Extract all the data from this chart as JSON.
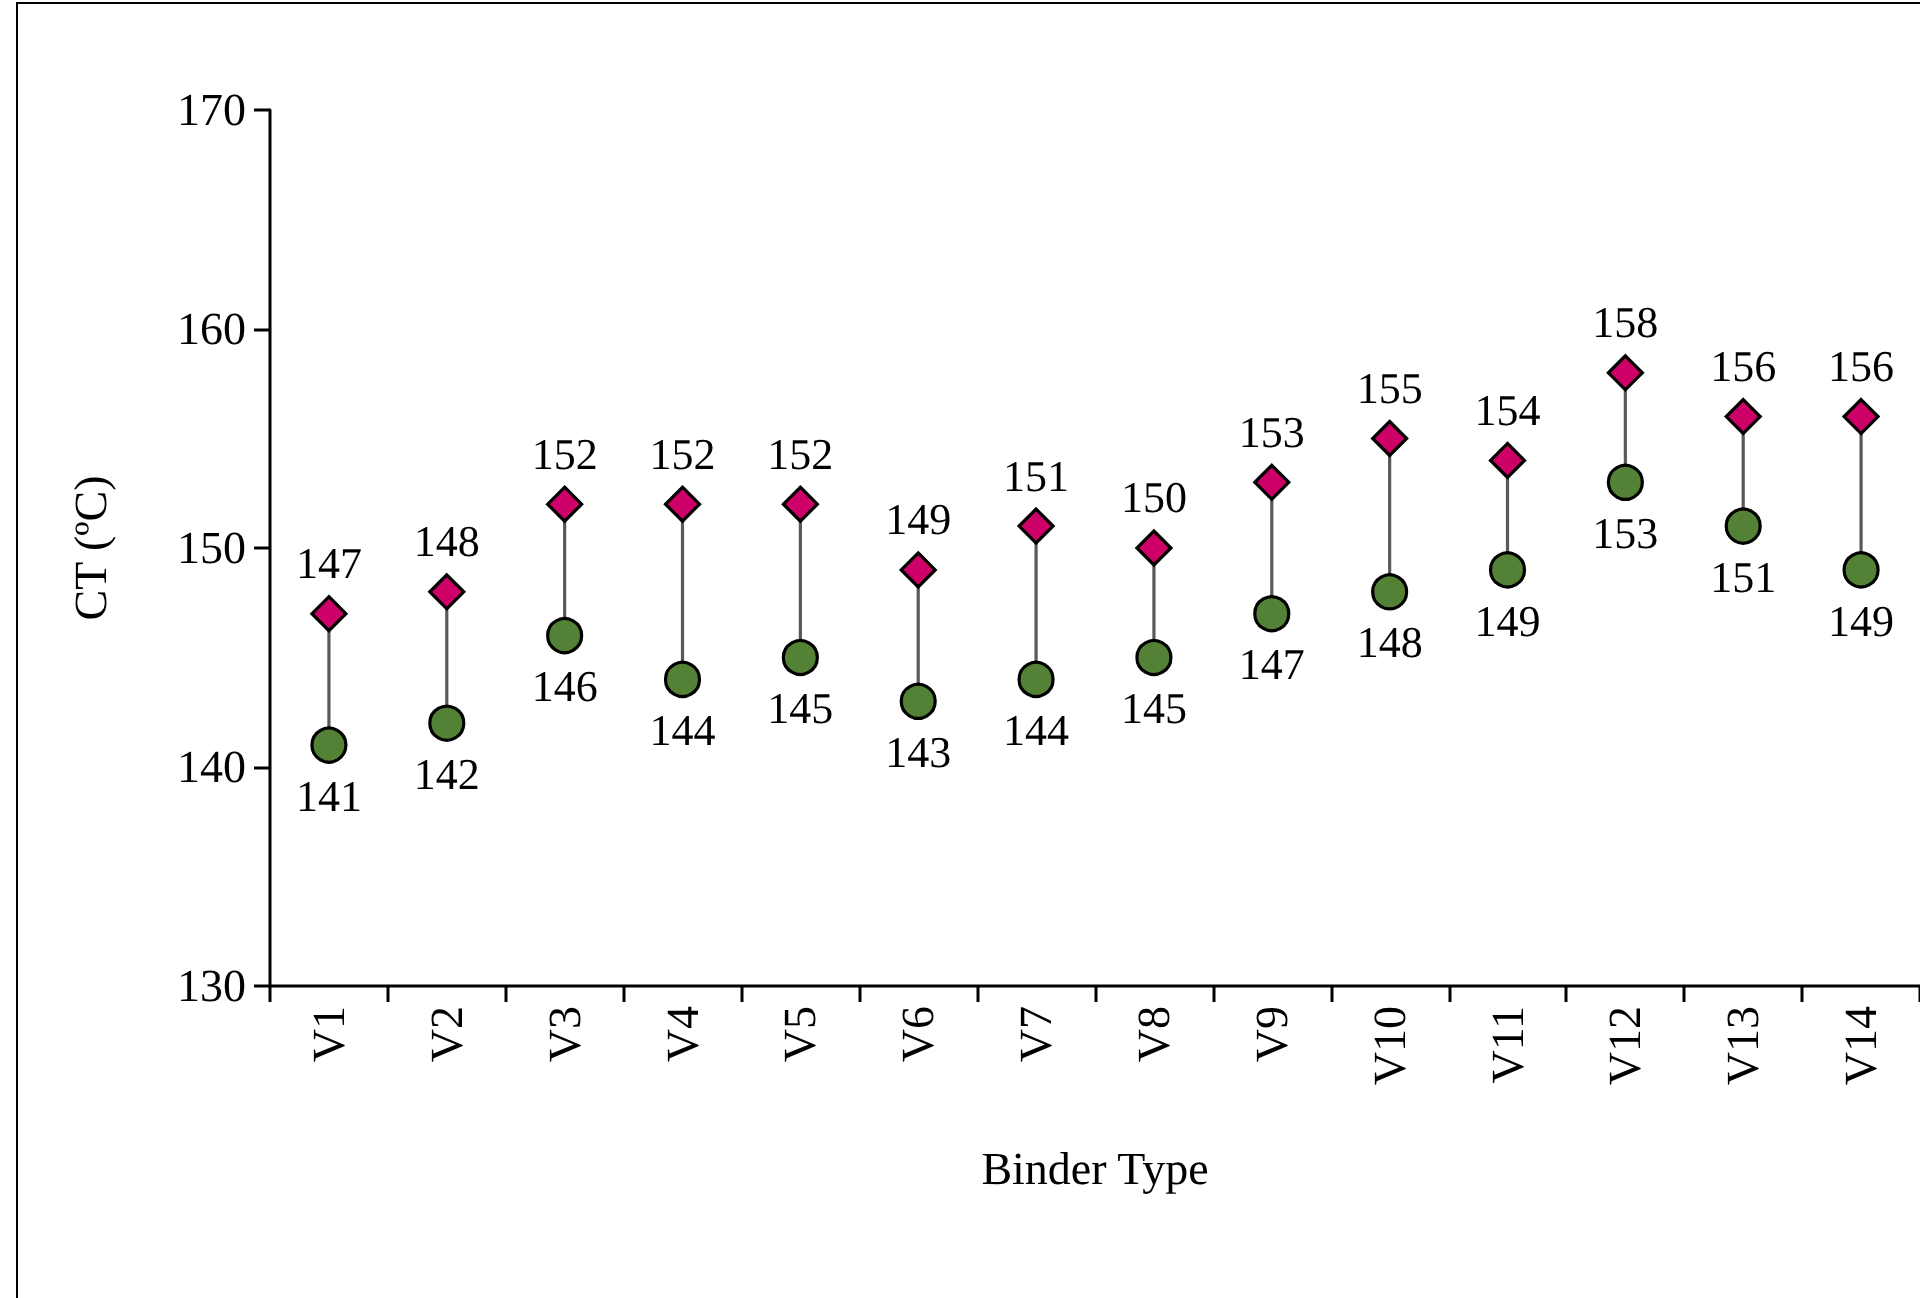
{
  "chart_data": {
    "type": "scatter",
    "xlabel": "Binder Type",
    "ylabel": "CT (ºC)",
    "categories": [
      "V1",
      "V2",
      "V3",
      "V4",
      "V5",
      "V6",
      "V7",
      "V8",
      "V9",
      "V10",
      "V11",
      "V12",
      "V13",
      "V14"
    ],
    "series": [
      {
        "color": "#cc0066",
        "marker": "diamond",
        "values": [
          147,
          148,
          152,
          152,
          152,
          149,
          151,
          150,
          153,
          155,
          154,
          158,
          156,
          156
        ]
      },
      {
        "color": "#538135",
        "marker": "circle",
        "values": [
          141,
          142,
          146,
          144,
          145,
          143,
          144,
          145,
          147,
          148,
          149,
          153,
          151,
          149
        ]
      }
    ],
    "ylim": [
      130,
      170
    ],
    "yticks": [
      130,
      140,
      150,
      160,
      170
    ],
    "data_labels": true
  }
}
